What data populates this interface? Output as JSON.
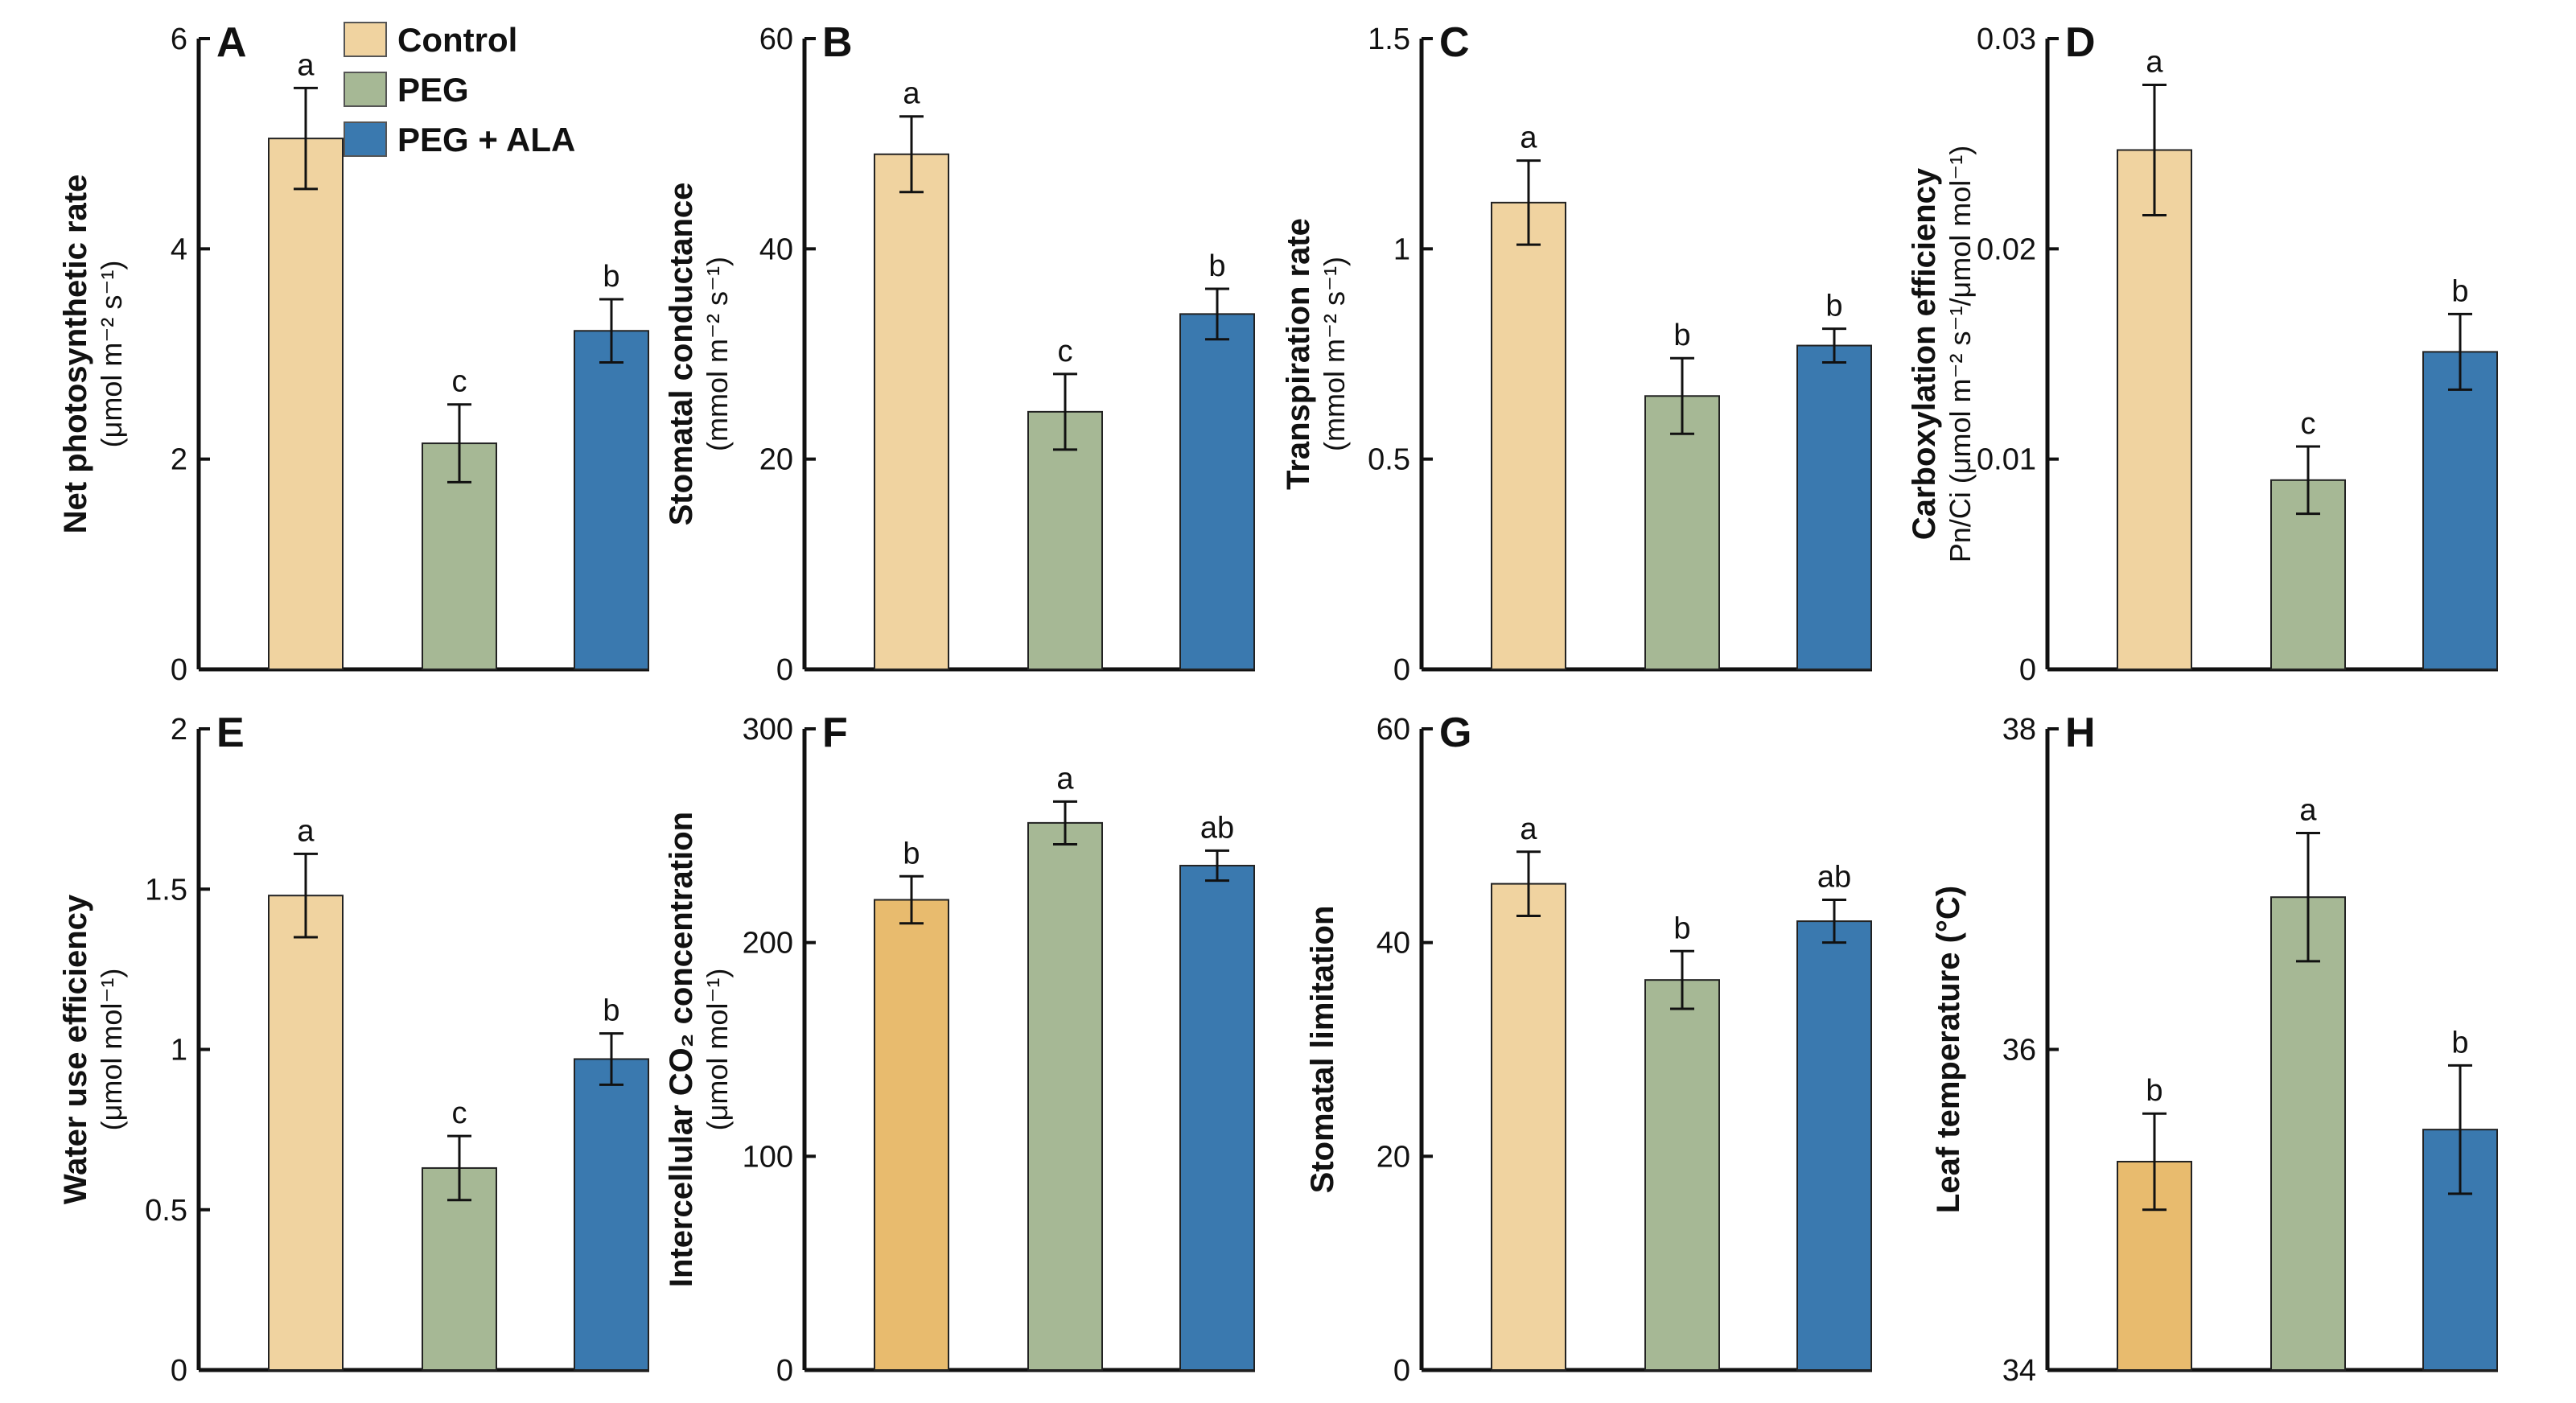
{
  "legend": [
    {
      "label": "Control",
      "color": "#F0D3A0"
    },
    {
      "label": "PEG",
      "color": "#A6B895"
    },
    {
      "label": "PEG + ALA",
      "color": "#3A79AF"
    }
  ],
  "chart_data": [
    {
      "type": "bar",
      "panel": "A",
      "ylabel": "Net photosynthetic rate",
      "yunit": "(μmol m⁻² s⁻¹)",
      "ylim": [
        0,
        6
      ],
      "yticks": [
        "0",
        "2",
        "4",
        "6"
      ],
      "categories": [
        "Control",
        "PEG",
        "PEG + ALA"
      ],
      "values": [
        5.05,
        2.15,
        3.22
      ],
      "errors": [
        0.48,
        0.37,
        0.3
      ],
      "letters": [
        "a",
        "c",
        "b"
      ]
    },
    {
      "type": "bar",
      "panel": "B",
      "ylabel": "Stomatal conductance",
      "yunit": "(mmol m⁻² s⁻¹)",
      "ylim": [
        0,
        60
      ],
      "yticks": [
        "0",
        "20",
        "40",
        "60"
      ],
      "categories": [
        "Control",
        "PEG",
        "PEG + ALA"
      ],
      "values": [
        49.0,
        24.5,
        33.8
      ],
      "errors": [
        3.6,
        3.6,
        2.4
      ],
      "letters": [
        "a",
        "c",
        "b"
      ]
    },
    {
      "type": "bar",
      "panel": "C",
      "ylabel": "Transpiration rate",
      "yunit": "(mmol m⁻² s⁻¹)",
      "ylim": [
        0,
        1.5
      ],
      "yticks": [
        "0",
        "0.5",
        "1",
        "1.5"
      ],
      "categories": [
        "Control",
        "PEG",
        "PEG + ALA"
      ],
      "values": [
        1.11,
        0.65,
        0.77
      ],
      "errors": [
        0.1,
        0.09,
        0.04
      ],
      "letters": [
        "a",
        "b",
        "b"
      ]
    },
    {
      "type": "bar",
      "panel": "D",
      "ylabel": "Carboxylation efficiency",
      "yunit": "Pn/Ci (μmol m⁻² s⁻¹/μmol mol⁻¹)",
      "ylim": [
        0,
        0.03
      ],
      "yticks": [
        "0",
        "0.01",
        "0.02",
        "0.03"
      ],
      "categories": [
        "Control",
        "PEG",
        "PEG + ALA"
      ],
      "values": [
        0.0247,
        0.009,
        0.0151
      ],
      "errors": [
        0.0031,
        0.0016,
        0.0018
      ],
      "letters": [
        "a",
        "c",
        "b"
      ]
    },
    {
      "type": "bar",
      "panel": "E",
      "ylabel": "Water use efficiency",
      "yunit": "(μmol mol⁻¹)",
      "ylim": [
        0,
        2
      ],
      "yticks": [
        "0",
        "0.5",
        "1",
        "1.5",
        "2"
      ],
      "categories": [
        "Control",
        "PEG",
        "PEG + ALA"
      ],
      "values": [
        1.48,
        0.63,
        0.97
      ],
      "errors": [
        0.13,
        0.1,
        0.08
      ],
      "letters": [
        "a",
        "c",
        "b"
      ]
    },
    {
      "type": "bar",
      "panel": "F",
      "ylabel": "Intercellular CO₂ concentration",
      "yunit": "(μmol mol⁻¹)",
      "ylim": [
        0,
        300
      ],
      "yticks": [
        "0",
        "100",
        "200",
        "300"
      ],
      "categories": [
        "Control",
        "PEG",
        "PEG + ALA"
      ],
      "values": [
        220,
        256,
        236
      ],
      "errors": [
        11,
        10,
        7
      ],
      "letters": [
        "b",
        "a",
        "ab"
      ]
    },
    {
      "type": "bar",
      "panel": "G",
      "ylabel": "Stomatal limitation",
      "yunit": "",
      "ylim": [
        0,
        60
      ],
      "yticks": [
        "0",
        "20",
        "40",
        "60"
      ],
      "categories": [
        "Control",
        "PEG",
        "PEG + ALA"
      ],
      "values": [
        45.5,
        36.5,
        42.0
      ],
      "errors": [
        3.0,
        2.7,
        2.0
      ],
      "letters": [
        "a",
        "b",
        "ab"
      ]
    },
    {
      "type": "bar",
      "panel": "H",
      "ylabel": "Leaf temperature (°C)",
      "yunit": "",
      "ylim": [
        34,
        38
      ],
      "yticks": [
        "34",
        "36",
        "38"
      ],
      "categories": [
        "Control",
        "PEG",
        "PEG + ALA"
      ],
      "values": [
        35.3,
        36.95,
        35.5
      ],
      "errors": [
        0.3,
        0.4,
        0.4
      ],
      "letters": [
        "b",
        "a",
        "b"
      ]
    }
  ]
}
